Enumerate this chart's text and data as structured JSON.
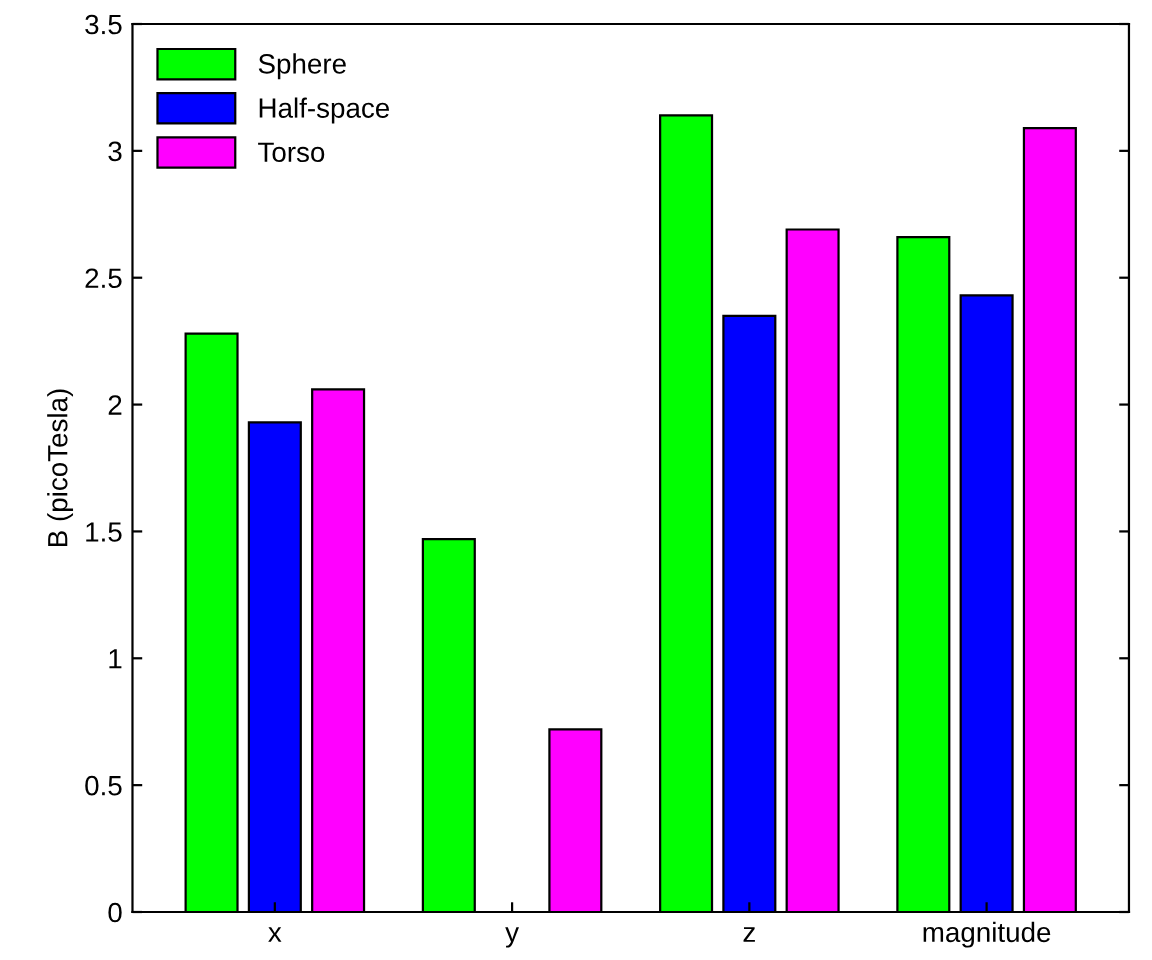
{
  "chart_data": {
    "type": "bar",
    "ylabel": "B (picoTesla)",
    "categories": [
      "x",
      "y",
      "z",
      "magnitude"
    ],
    "series": [
      {
        "name": "Sphere",
        "color": "#00ff00",
        "values": [
          2.28,
          1.47,
          3.14,
          2.66
        ]
      },
      {
        "name": "Half-space",
        "color": "#0000ff",
        "values": [
          1.93,
          null,
          2.35,
          2.43
        ]
      },
      {
        "name": "Torso",
        "color": "#ff00ff",
        "values": [
          2.06,
          0.72,
          2.69,
          3.09
        ]
      }
    ],
    "ylim": [
      0,
      3.5
    ],
    "yticks": [
      0,
      0.5,
      1,
      1.5,
      2,
      2.5,
      3,
      3.5
    ],
    "legend": "top left",
    "grid": false
  }
}
